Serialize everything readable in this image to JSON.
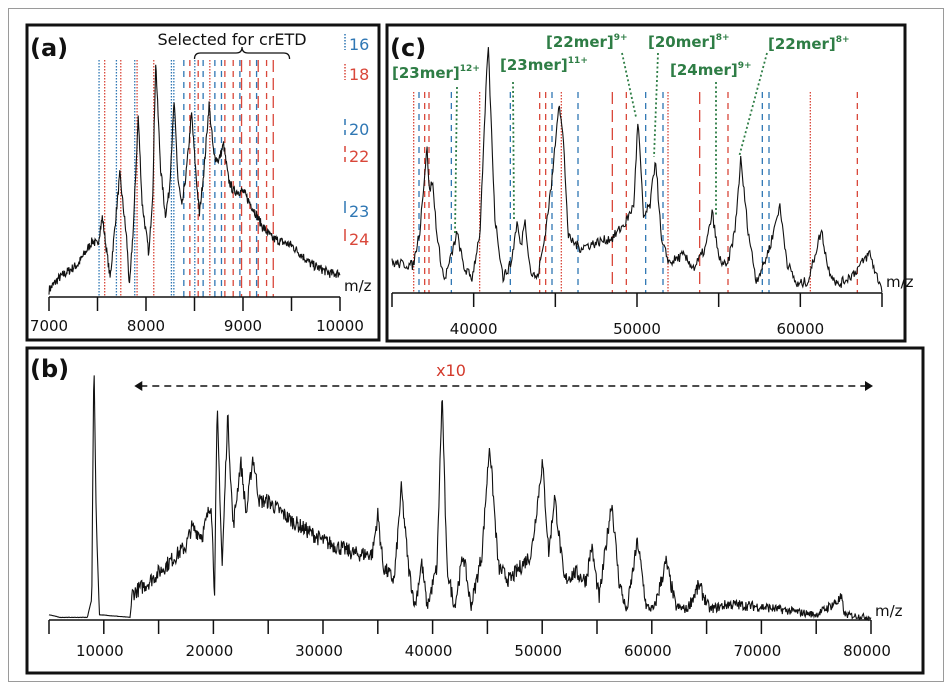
{
  "colors": {
    "blue": "#2f77b4",
    "red": "#d9473a",
    "green": "#2e7d45",
    "trace": "#111111",
    "x10": "#d33a2c"
  },
  "chart_data": [
    {
      "panel": "(a)",
      "type": "line",
      "xlabel": "m/z",
      "xlim": [
        7000,
        10000
      ],
      "xticks": [
        7000,
        7500,
        8000,
        8500,
        9000,
        9500,
        10000
      ],
      "xtick_labels": [
        "7000",
        "8000",
        "9000",
        "10000"
      ],
      "bracket_label": "Selected for crETD",
      "bracket_range": [
        8500,
        9480
      ],
      "legend": [
        {
          "label": "16",
          "color": "blue",
          "style": "dotted"
        },
        {
          "label": "18",
          "color": "red",
          "style": "dotted"
        },
        {
          "label": "20",
          "color": "blue",
          "style": "dashed"
        },
        {
          "label": "22",
          "color": "red",
          "style": "dashed"
        },
        {
          "label": "23",
          "color": "blue",
          "style": "longdash"
        },
        {
          "label": "24",
          "color": "red",
          "style": "longdash"
        }
      ],
      "markers": [
        [
          7516,
          "blue",
          "dotted"
        ],
        [
          7574,
          "red",
          "dotted"
        ],
        [
          7695,
          "blue",
          "dotted"
        ],
        [
          7740,
          "red",
          "dotted"
        ],
        [
          7884,
          "blue",
          "dotted"
        ],
        [
          7908,
          "red",
          "dotted"
        ],
        [
          8080,
          "red",
          "dotted"
        ],
        [
          8262,
          "blue",
          "dotted"
        ],
        [
          8287,
          "blue",
          "dotted"
        ],
        [
          8390,
          "blue",
          "dashed"
        ],
        [
          8452,
          "red",
          "dashed"
        ],
        [
          8503,
          "blue",
          "dotted"
        ],
        [
          8538,
          "red",
          "dashed"
        ],
        [
          8589,
          "blue",
          "dashed"
        ],
        [
          8658,
          "red",
          "dotted"
        ],
        [
          8710,
          "blue",
          "dashed"
        ],
        [
          8778,
          "blue",
          "dashed"
        ],
        [
          8813,
          "red",
          "dashed"
        ],
        [
          8899,
          "red",
          "dashed"
        ],
        [
          8968,
          "blue",
          "dashed"
        ],
        [
          8985,
          "red",
          "longdash"
        ],
        [
          9071,
          "red",
          "dashed"
        ],
        [
          9140,
          "blue",
          "dashed"
        ],
        [
          9157,
          "red",
          "longdash"
        ],
        [
          9243,
          "red",
          "dashed"
        ],
        [
          9312,
          "red",
          "longdash"
        ]
      ],
      "trace": [
        [
          7000,
          3
        ],
        [
          7100,
          8
        ],
        [
          7300,
          14
        ],
        [
          7450,
          24
        ],
        [
          7500,
          22
        ],
        [
          7550,
          34
        ],
        [
          7630,
          8
        ],
        [
          7680,
          30
        ],
        [
          7730,
          52
        ],
        [
          7800,
          25
        ],
        [
          7830,
          4
        ],
        [
          7870,
          30
        ],
        [
          7920,
          77
        ],
        [
          7960,
          40
        ],
        [
          8030,
          18
        ],
        [
          8070,
          45
        ],
        [
          8100,
          100
        ],
        [
          8150,
          55
        ],
        [
          8200,
          35
        ],
        [
          8240,
          45
        ],
        [
          8290,
          83
        ],
        [
          8330,
          50
        ],
        [
          8370,
          38
        ],
        [
          8420,
          55
        ],
        [
          8470,
          78
        ],
        [
          8510,
          55
        ],
        [
          8550,
          35
        ],
        [
          8600,
          55
        ],
        [
          8650,
          82
        ],
        [
          8700,
          60
        ],
        [
          8750,
          58
        ],
        [
          8800,
          65
        ],
        [
          8850,
          50
        ],
        [
          8900,
          45
        ],
        [
          9000,
          45
        ],
        [
          9100,
          38
        ],
        [
          9200,
          30
        ],
        [
          9300,
          25
        ],
        [
          9500,
          22
        ],
        [
          9700,
          14
        ],
        [
          9900,
          10
        ]
      ]
    },
    {
      "panel": "(b)",
      "type": "line",
      "xlabel": "m/z",
      "xlim": [
        5000,
        80000
      ],
      "xticks": [
        5000,
        10000,
        15000,
        20000,
        25000,
        30000,
        35000,
        40000,
        45000,
        50000,
        55000,
        60000,
        65000,
        70000,
        75000,
        80000
      ],
      "xtick_labels": [
        "10000",
        "20000",
        "30000",
        "40000",
        "50000",
        "60000",
        "70000",
        "80000"
      ],
      "scale_annotation": "x10",
      "scale_range": [
        12600,
        80000
      ],
      "trace": [
        [
          5000,
          2
        ],
        [
          6000,
          1
        ],
        [
          8500,
          1
        ],
        [
          8900,
          8
        ],
        [
          9100,
          100
        ],
        [
          9300,
          40
        ],
        [
          9600,
          2
        ],
        [
          12400,
          1
        ],
        [
          12600,
          10
        ],
        [
          14000,
          14
        ],
        [
          16000,
          22
        ],
        [
          17500,
          28
        ],
        [
          18000,
          35
        ],
        [
          19000,
          32
        ],
        [
          19800,
          45
        ],
        [
          20100,
          10
        ],
        [
          20350,
          80
        ],
        [
          20800,
          20
        ],
        [
          21300,
          78
        ],
        [
          21800,
          35
        ],
        [
          22500,
          60
        ],
        [
          23000,
          40
        ],
        [
          23600,
          62
        ],
        [
          24200,
          45
        ],
        [
          25000,
          45
        ],
        [
          27000,
          38
        ],
        [
          30000,
          30
        ],
        [
          33000,
          25
        ],
        [
          34500,
          25
        ],
        [
          35000,
          40
        ],
        [
          35500,
          20
        ],
        [
          36500,
          15
        ],
        [
          37150,
          50
        ],
        [
          37800,
          20
        ],
        [
          38400,
          5
        ],
        [
          39000,
          22
        ],
        [
          39500,
          5
        ],
        [
          40400,
          20
        ],
        [
          40870,
          86
        ],
        [
          41300,
          20
        ],
        [
          42000,
          5
        ],
        [
          42800,
          25
        ],
        [
          43500,
          5
        ],
        [
          44500,
          25
        ],
        [
          45200,
          67
        ],
        [
          46000,
          20
        ],
        [
          47000,
          15
        ],
        [
          49000,
          25
        ],
        [
          50020,
          60
        ],
        [
          50600,
          25
        ],
        [
          51130,
          47
        ],
        [
          52000,
          15
        ],
        [
          53000,
          18
        ],
        [
          54000,
          15
        ],
        [
          54500,
          28
        ],
        [
          55200,
          8
        ],
        [
          56340,
          45
        ],
        [
          57000,
          15
        ],
        [
          57700,
          3
        ],
        [
          58700,
          30
        ],
        [
          59500,
          5
        ],
        [
          60200,
          4
        ],
        [
          61300,
          22
        ],
        [
          62200,
          5
        ],
        [
          63200,
          4
        ],
        [
          64300,
          13
        ],
        [
          65300,
          4
        ],
        [
          67000,
          6
        ],
        [
          70000,
          5
        ],
        [
          75000,
          2
        ],
        [
          77300,
          8
        ],
        [
          77600,
          2
        ],
        [
          80000,
          1
        ]
      ]
    },
    {
      "panel": "(c)",
      "type": "line",
      "xlabel": "m/z",
      "xlim": [
        35000,
        65000
      ],
      "xticks": [
        35000,
        40000,
        45000,
        50000,
        55000,
        60000,
        65000
      ],
      "xtick_labels": [
        "40000",
        "50000",
        "60000"
      ],
      "annotations": [
        {
          "name": "[23mer]",
          "charge": "12+",
          "mz": 38980
        },
        {
          "name": "[23mer]",
          "charge": "11+",
          "mz": 42650
        },
        {
          "name": "[22mer]",
          "charge": "9+",
          "mz": 50060
        },
        {
          "name": "[20mer]",
          "charge": "8+",
          "mz": 51140
        },
        {
          "name": "[24mer]",
          "charge": "9+",
          "mz": 54610
        },
        {
          "name": "[22mer]",
          "charge": "8+",
          "mz": 56350
        }
      ],
      "markers": [
        [
          36327,
          "red",
          "dotted"
        ],
        [
          36653,
          "blue",
          "dashed"
        ],
        [
          37000,
          "red",
          "dashed"
        ],
        [
          37265,
          "red",
          "dashed"
        ],
        [
          38633,
          "blue",
          "dashed"
        ],
        [
          40367,
          "red",
          "dotted"
        ],
        [
          42245,
          "blue",
          "dashed"
        ],
        [
          44041,
          "red",
          "dashed"
        ],
        [
          44408,
          "red",
          "dashed"
        ],
        [
          44796,
          "blue",
          "dashed"
        ],
        [
          45367,
          "red",
          "dotted"
        ],
        [
          46388,
          "blue",
          "dashed"
        ],
        [
          48490,
          "red",
          "longdash"
        ],
        [
          49347,
          "red",
          "dashed"
        ],
        [
          50531,
          "blue",
          "dashed"
        ],
        [
          51592,
          "blue",
          "dashed"
        ],
        [
          51898,
          "red",
          "dotted"
        ],
        [
          53837,
          "red",
          "longdash"
        ],
        [
          55571,
          "red",
          "dashed"
        ],
        [
          57673,
          "blue",
          "dashed"
        ],
        [
          58082,
          "blue",
          "dashed"
        ],
        [
          60612,
          "red",
          "dotted"
        ],
        [
          63490,
          "red",
          "dashed"
        ]
      ],
      "trace": [
        [
          35000,
          12
        ],
        [
          36300,
          11
        ],
        [
          36700,
          25
        ],
        [
          37140,
          58
        ],
        [
          37300,
          40
        ],
        [
          37470,
          45
        ],
        [
          37800,
          20
        ],
        [
          38200,
          5
        ],
        [
          38600,
          14
        ],
        [
          38980,
          24
        ],
        [
          39400,
          10
        ],
        [
          39900,
          6
        ],
        [
          40400,
          25
        ],
        [
          40880,
          100
        ],
        [
          41300,
          30
        ],
        [
          41800,
          6
        ],
        [
          42300,
          12
        ],
        [
          42650,
          28
        ],
        [
          42900,
          18
        ],
        [
          43120,
          30
        ],
        [
          43500,
          8
        ],
        [
          43900,
          6
        ],
        [
          44300,
          20
        ],
        [
          44800,
          45
        ],
        [
          45220,
          77
        ],
        [
          45500,
          60
        ],
        [
          45800,
          22
        ],
        [
          46500,
          18
        ],
        [
          47500,
          20
        ],
        [
          48500,
          22
        ],
        [
          49300,
          28
        ],
        [
          49800,
          35
        ],
        [
          50060,
          69
        ],
        [
          50400,
          30
        ],
        [
          50800,
          35
        ],
        [
          51140,
          54
        ],
        [
          51500,
          20
        ],
        [
          52000,
          12
        ],
        [
          52800,
          15
        ],
        [
          53500,
          10
        ],
        [
          54200,
          18
        ],
        [
          54610,
          32
        ],
        [
          55000,
          14
        ],
        [
          55500,
          10
        ],
        [
          56000,
          25
        ],
        [
          56350,
          53
        ],
        [
          56800,
          25
        ],
        [
          57300,
          5
        ],
        [
          57800,
          12
        ],
        [
          58200,
          20
        ],
        [
          58730,
          35
        ],
        [
          59200,
          12
        ],
        [
          59800,
          3
        ],
        [
          60500,
          5
        ],
        [
          61000,
          18
        ],
        [
          61290,
          25
        ],
        [
          61700,
          10
        ],
        [
          62300,
          3
        ],
        [
          63300,
          8
        ],
        [
          64250,
          16
        ],
        [
          64600,
          8
        ],
        [
          65000,
          2
        ]
      ]
    }
  ]
}
